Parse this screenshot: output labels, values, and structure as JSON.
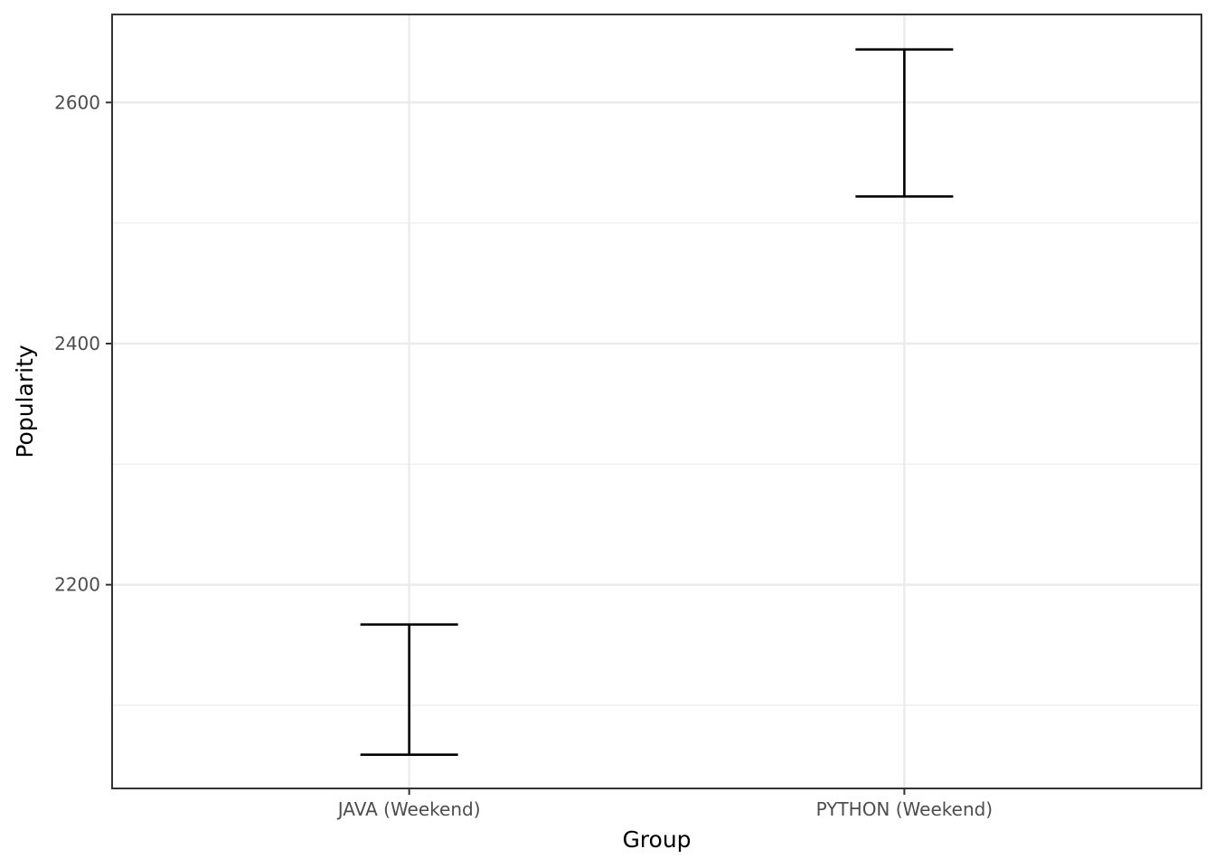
{
  "chart_data": {
    "type": "errorbar",
    "xlabel": "Group",
    "ylabel": "Popularity",
    "categories": [
      "JAVA (Weekend)",
      "PYTHON (Weekend)"
    ],
    "series": [
      {
        "intervals": [
          {
            "category": "JAVA (Weekend)",
            "lower": 2059,
            "upper": 2167
          },
          {
            "category": "PYTHON (Weekend)",
            "lower": 2522,
            "upper": 2644
          }
        ]
      }
    ],
    "ylim": [
      2031,
      2673
    ],
    "y_ticks": [
      2200,
      2400,
      2600
    ],
    "y_minor_ticks": [
      2100,
      2300,
      2500
    ],
    "grid": true,
    "legend": "none",
    "colors": {
      "errorbar": "#000000",
      "grid": "#ebebeb",
      "panel_border": "#333333",
      "tick_label": "#4d4d4d",
      "axis_title": "#000000",
      "background": "#ffffff"
    }
  }
}
